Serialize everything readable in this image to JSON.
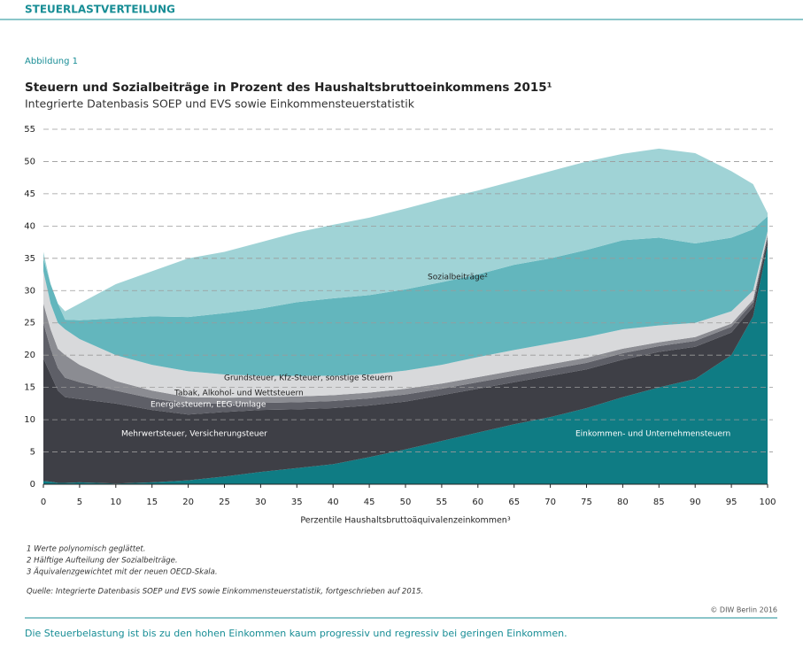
{
  "header": "STEUERLASTVERTEILUNG",
  "figure_label": "Abbildung 1",
  "chart_data": {
    "type": "stacked_area",
    "title": "Steuern und Sozialbeiträge in Prozent des Haushaltsbruttoeinkommens 2015¹",
    "subtitle": "Integrierte Datenbasis SOEP und EVS sowie Einkommensteuerstatistik",
    "x_label": "Perzentile Haushaltsbruttoäquivalenzeinkommen³",
    "x": [
      0,
      1,
      2,
      3,
      5,
      10,
      15,
      20,
      25,
      30,
      35,
      40,
      45,
      50,
      55,
      60,
      65,
      70,
      75,
      80,
      85,
      90,
      95,
      98,
      100
    ],
    "xlim": [
      0,
      100
    ],
    "xticks": [
      0,
      5,
      10,
      15,
      20,
      25,
      30,
      35,
      40,
      45,
      50,
      55,
      60,
      65,
      70,
      75,
      80,
      85,
      90,
      95,
      100
    ],
    "ylim": [
      0,
      55
    ],
    "yticks": [
      0,
      5,
      10,
      15,
      20,
      25,
      30,
      35,
      40,
      45,
      50,
      55
    ],
    "grid": true,
    "series": [
      {
        "name": "Einkommen- und Unternehmensteuern",
        "color": "#0f7c84",
        "values": [
          0.5,
          0.4,
          0.2,
          0.2,
          0.3,
          0.1,
          0.3,
          0.6,
          1.2,
          1.9,
          2.5,
          3.1,
          4.2,
          5.4,
          6.7,
          8.0,
          9.3,
          10.4,
          11.8,
          13.5,
          15,
          16.3,
          20,
          26,
          37
        ]
      },
      {
        "name": "Mehrwertsteuer, Versicherungsteuer",
        "color": "#3e3f46",
        "values": [
          19.0,
          16.6,
          14.3,
          13.3,
          12.9,
          12.4,
          11.2,
          10.2,
          10.0,
          9.6,
          9.1,
          8.7,
          8.0,
          7.4,
          7.1,
          6.8,
          6.5,
          6.4,
          6.0,
          5.8,
          5.5,
          5.0,
          3.5,
          1.5,
          1.0
        ]
      },
      {
        "name": "Energiesteuern, EEG-Umlage",
        "color": "#5e5f67",
        "values": [
          5.5,
          4,
          3.5,
          3,
          2.6,
          2,
          1.8,
          1.7,
          1.3,
          1.1,
          1.1,
          1.1,
          1.1,
          1.1,
          1.0,
          1.0,
          1.0,
          1.0,
          1.0,
          1.0,
          0.9,
          0.9,
          0.9,
          0.7,
          0.4
        ]
      },
      {
        "name": "Tabak, Alkohol- und Wettsteuern",
        "color": "#8b8c92",
        "values": [
          3,
          3,
          3,
          3.5,
          2.7,
          1.5,
          1.2,
          1.0,
          0.9,
          0.9,
          0.9,
          0.9,
          0.9,
          0.9,
          0.8,
          0.8,
          0.8,
          0.8,
          0.8,
          0.7,
          0.6,
          0.6,
          0.5,
          0.4,
          0.3
        ]
      },
      {
        "name": "Grundsteuer, Kfz-Steuer, sonstige Steuern",
        "color": "#d8d9db",
        "values": [
          5,
          4,
          4,
          4,
          4,
          4,
          4,
          4,
          3.6,
          3.3,
          3.2,
          3.0,
          2.8,
          2.8,
          2.9,
          3.1,
          3.2,
          3.2,
          3.2,
          3.0,
          2.6,
          2.2,
          1.9,
          1.4,
          0.5
        ]
      },
      {
        "name": "Sozialbeiträge²",
        "color": "#63b6bd",
        "values": [
          2,
          3,
          3,
          1.5,
          2.9,
          5.7,
          7.5,
          8.4,
          9.5,
          10.4,
          11.4,
          12,
          12.3,
          12.6,
          12.8,
          12.8,
          13.2,
          13.2,
          13.5,
          13.8,
          13.6,
          12.3,
          11.4,
          9.5,
          2.3
        ]
      },
      {
        "color": "#a0d3d6",
        "values": [
          1,
          0,
          0,
          1.3,
          2.6,
          5.3,
          7,
          9.1,
          9.5,
          10.3,
          10.8,
          11.4,
          12,
          12.5,
          12.9,
          13,
          13,
          13.5,
          13.7,
          13.4,
          13.8,
          14,
          10.3,
          7,
          0.5
        ]
      }
    ]
  },
  "footnotes": [
    "1  Werte polynomisch geglättet.",
    "2  Hälftige Aufteilung der Sozialbeiträge.",
    "3  Äquivalenzgewichtet mit der neuen OECD-Skala."
  ],
  "source": "Quelle: Integrierte Datenbasis SOEP und EVS sowie Einkommensteuerstatistik, fortgeschrieben auf 2015.",
  "copyright": "© DIW Berlin 2016",
  "caption": "Die Steuerbelastung ist bis zu den hohen Einkommen kaum progressiv und regressiv bei geringen Einkommen."
}
